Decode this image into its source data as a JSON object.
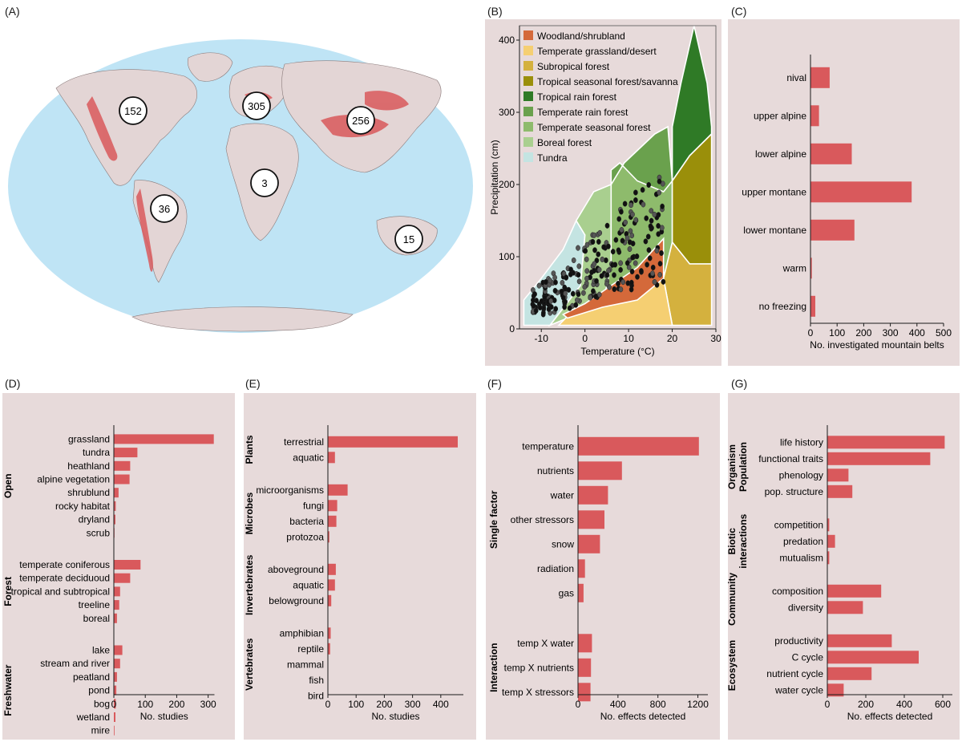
{
  "panel_labels": {
    "A": "(A)",
    "B": "(B)",
    "C": "(C)",
    "D": "(D)",
    "E": "(E)",
    "F": "(F)",
    "G": "(G)"
  },
  "colors": {
    "bar": "#d9595c",
    "panel_bg": "#e7dada",
    "ocean": "#bfe4f5",
    "land": "#e3d5d5",
    "mountain": "#d9595c"
  },
  "map": {
    "bubbles": [
      {
        "region": "north-america",
        "label": "152"
      },
      {
        "region": "europe",
        "label": "305"
      },
      {
        "region": "east-asia",
        "label": "256"
      },
      {
        "region": "africa",
        "label": "3"
      },
      {
        "region": "south-america",
        "label": "36"
      },
      {
        "region": "australia",
        "label": "15"
      }
    ]
  },
  "chart_data": [
    {
      "id": "B",
      "type": "scatter",
      "xlabel": "Temperature (°C)",
      "ylabel": "Precipitation (cm)",
      "xlim": [
        -15,
        30
      ],
      "ylim": [
        0,
        420
      ],
      "xticks": [
        "-10",
        "0",
        "10",
        "20",
        "30"
      ],
      "yticks": [
        "0",
        "100",
        "200",
        "300",
        "400"
      ],
      "legend_position": "top-left",
      "biomes": [
        {
          "name": "Woodland/shrubland",
          "color": "#d4693a"
        },
        {
          "name": "Temperate grassland/desert",
          "color": "#f5cf72"
        },
        {
          "name": "Subropical forest",
          "color": "#d4b13e"
        },
        {
          "name": "Tropical seasonal forest/savanna",
          "color": "#9a8f0a"
        },
        {
          "name": "Tropical rain forest",
          "color": "#2f7a26"
        },
        {
          "name": "Temperate rain forest",
          "color": "#6aa14d"
        },
        {
          "name": "Temperate seasonal forest",
          "color": "#8ebb6c"
        },
        {
          "name": "Boreal forest",
          "color": "#a9cf8f"
        },
        {
          "name": "Tundra",
          "color": "#c4e4e2"
        }
      ]
    },
    {
      "id": "C",
      "type": "bar",
      "orientation": "horizontal",
      "xlabel": "No. investigated mountain belts",
      "xlim": [
        0,
        500
      ],
      "xticks": [
        "0",
        "100",
        "200",
        "300",
        "400",
        "500"
      ],
      "categories": [
        "nival",
        "upper alpine",
        "lower alpine",
        "upper montane",
        "lower montane",
        "warm",
        "no freezing"
      ],
      "values": [
        72,
        32,
        155,
        380,
        165,
        5,
        18
      ]
    },
    {
      "id": "D",
      "type": "bar",
      "orientation": "horizontal",
      "xlabel": "No. studies",
      "xlim": [
        0,
        320
      ],
      "xticks": [
        "0",
        "100",
        "200",
        "300"
      ],
      "groups": [
        {
          "name": "Open",
          "categories": [
            "grassland",
            "tundra",
            "heathland",
            "alpine vegetation",
            "shrublund",
            "rocky habitat",
            "dryland",
            "scrub"
          ],
          "values": [
            318,
            75,
            52,
            50,
            15,
            6,
            5,
            2
          ]
        },
        {
          "name": "Forest",
          "categories": [
            "temperate coniferous",
            "temperate deciduoud",
            "tropical and subtropical",
            "treeline",
            "boreal"
          ],
          "values": [
            85,
            52,
            20,
            17,
            10
          ]
        },
        {
          "name": "Freshwater",
          "categories": [
            "lake",
            "stream and river",
            "peatland",
            "pond",
            "bog",
            "wetland",
            "mire"
          ],
          "values": [
            27,
            20,
            10,
            8,
            6,
            5,
            2
          ]
        }
      ]
    },
    {
      "id": "E",
      "type": "bar",
      "orientation": "horizontal",
      "xlabel": "No. studies",
      "xlim": [
        0,
        480
      ],
      "xticks": [
        "0",
        "100",
        "200",
        "300",
        "400"
      ],
      "groups": [
        {
          "name": "Plants",
          "categories": [
            "terrestrial",
            "aquatic"
          ],
          "values": [
            460,
            25
          ]
        },
        {
          "name": "Microbes",
          "categories": [
            "microorganisms",
            "fungi",
            "bacteria",
            "protozoa"
          ],
          "values": [
            70,
            33,
            30,
            5
          ]
        },
        {
          "name": "Invertebrates",
          "categories": [
            "aboveground",
            "aquatic",
            "belowground"
          ],
          "values": [
            28,
            25,
            12
          ]
        },
        {
          "name": "Vertebrates",
          "categories": [
            "amphibian",
            "reptile",
            "mammal",
            "fish",
            "bird"
          ],
          "values": [
            10,
            8,
            0,
            0,
            0
          ]
        }
      ]
    },
    {
      "id": "F",
      "type": "bar",
      "orientation": "horizontal",
      "xlabel": "No. effects detected",
      "xlim": [
        0,
        1300
      ],
      "xticks": [
        "0",
        "400",
        "800",
        "1200"
      ],
      "groups": [
        {
          "name": "Single factor",
          "categories": [
            "temperature",
            "nutrients",
            "water",
            "other stressors",
            "snow",
            "radiation",
            "gas"
          ],
          "values": [
            1210,
            440,
            300,
            265,
            220,
            70,
            55
          ]
        },
        {
          "name": "Interaction",
          "categories": [
            "temp X water",
            "temp X nutrients",
            "temp X stressors"
          ],
          "values": [
            140,
            130,
            125
          ]
        }
      ]
    },
    {
      "id": "G",
      "type": "bar",
      "orientation": "horizontal",
      "xlabel": "No. effects detected",
      "xlim": [
        0,
        650
      ],
      "xticks": [
        "0",
        "200",
        "400",
        "600"
      ],
      "groups": [
        {
          "name": "Organism Population",
          "categories": [
            "life history",
            "functional traits",
            "phenology",
            "pop. structure"
          ],
          "values": [
            610,
            535,
            110,
            130
          ]
        },
        {
          "name": "Biotic interactions",
          "categories": [
            "competition",
            "predation",
            "mutualism"
          ],
          "values": [
            10,
            40,
            10
          ]
        },
        {
          "name": "Community",
          "categories": [
            "composition",
            "diversity"
          ],
          "values": [
            280,
            185
          ]
        },
        {
          "name": "Ecosystem",
          "categories": [
            "productivity",
            "C cycle",
            "nutrient cycle",
            "water cycle"
          ],
          "values": [
            335,
            475,
            230,
            85
          ]
        }
      ]
    }
  ]
}
